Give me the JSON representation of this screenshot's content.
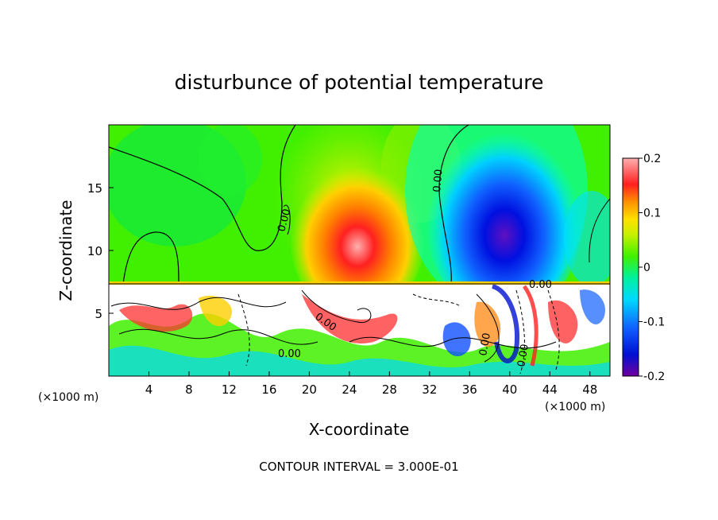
{
  "chart_data": {
    "type": "heatmap",
    "title": "disturbunce of potential temperature",
    "xlabel": "X-coordinate",
    "ylabel": "Z-coordinate",
    "x_unit_label_left": "(×1000 m)",
    "x_unit_label_right": "(×1000 m)",
    "xlim": [
      0,
      50
    ],
    "ylim": [
      0,
      20
    ],
    "x_ticks": [
      4,
      8,
      12,
      16,
      20,
      24,
      28,
      32,
      36,
      40,
      44,
      48
    ],
    "y_ticks": [
      5,
      10,
      15
    ],
    "x_tick_labels": [
      "4",
      "8",
      "12",
      "16",
      "20",
      "24",
      "28",
      "32",
      "36",
      "40",
      "44",
      "48"
    ],
    "y_tick_labels": [
      "5",
      "10",
      "15"
    ],
    "colorbar": {
      "range": [
        -0.2,
        0.2
      ],
      "tick_labels": [
        "0.2",
        "0.1",
        "0",
        "-0.1",
        "-0.2"
      ],
      "tick_values": [
        0.2,
        0.1,
        0,
        -0.1,
        -0.2
      ]
    },
    "contour_labels": [
      "0.00",
      "0.00",
      "0.00",
      "0.00",
      "0.00",
      "0.00",
      "0.00"
    ],
    "features": [
      {
        "x": 25.5,
        "z": 10.5,
        "value": 0.2
      },
      {
        "x": 23.0,
        "z": 15.0,
        "value": 0.08
      },
      {
        "x": 38.5,
        "z": 10.5,
        "value": -0.2
      },
      {
        "x": 37.0,
        "z": 16.5,
        "value": -0.1
      },
      {
        "x": 8.0,
        "z": 15.0,
        "value": 0.0
      }
    ],
    "grid": false,
    "footer": "CONTOUR INTERVAL = 3.000E-01"
  }
}
